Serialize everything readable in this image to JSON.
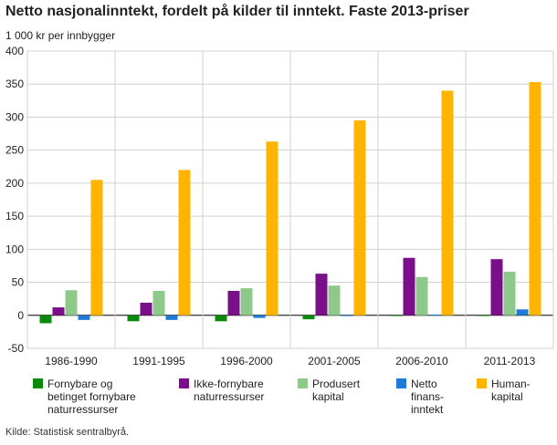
{
  "chart_data": {
    "type": "bar",
    "title": "Netto nasjonalinntekt, fordelt på kilder til inntekt. Faste 2013-priser",
    "ylabel": "1 000 kr per innbygger",
    "xlabel": "",
    "ylim": [
      -50,
      400
    ],
    "yticks": [
      -50,
      0,
      50,
      100,
      150,
      200,
      250,
      300,
      350,
      400
    ],
    "grid": true,
    "legend_position": "bottom",
    "categories": [
      "1986-1990",
      "1991-1995",
      "1996-2000",
      "2001-2005",
      "2006-2010",
      "2011-2013"
    ],
    "series": [
      {
        "name": "Fornybare og\nbetinget fornybare\nnaturressurser",
        "color": "#0a8a0a",
        "values": [
          -12,
          -9,
          -9,
          -6,
          -1,
          -1
        ]
      },
      {
        "name": "Ikke-fornybare\nnaturressurser",
        "color": "#7a0f8a",
        "values": [
          12,
          19,
          37,
          63,
          87,
          85
        ]
      },
      {
        "name": "Produsert\nkapital",
        "color": "#8fc98a",
        "values": [
          38,
          37,
          41,
          45,
          58,
          66
        ]
      },
      {
        "name": "Netto\nfinans-\ninntekt",
        "color": "#1f7ad8",
        "values": [
          -7,
          -7,
          -4,
          -1,
          1,
          9
        ]
      },
      {
        "name": "Human-\nkapital",
        "color": "#ffb400",
        "values": [
          205,
          220,
          263,
          295,
          340,
          353
        ]
      }
    ]
  },
  "source": "Kilde: Statistisk sentralbyrå."
}
